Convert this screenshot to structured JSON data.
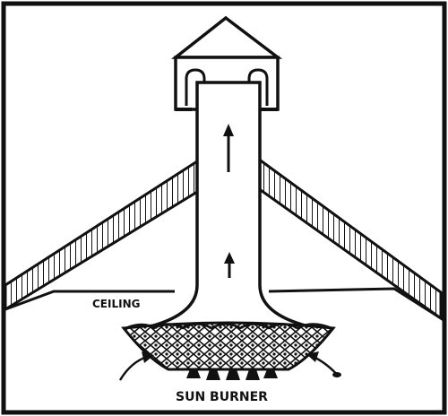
{
  "labels": {
    "ceiling": "CEILING",
    "burner": "SUN BURNER"
  }
}
